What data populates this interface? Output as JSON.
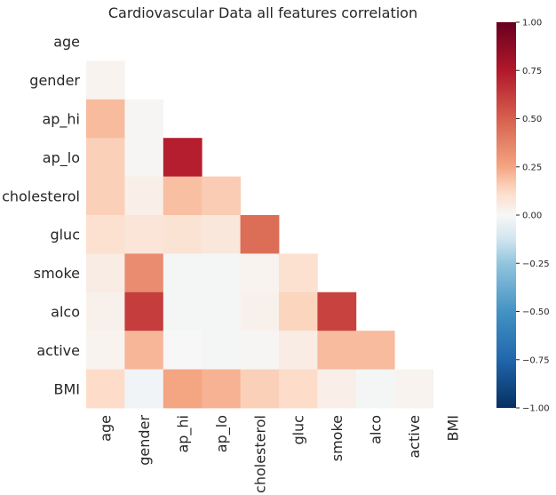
{
  "chart_data": {
    "type": "heatmap",
    "title": "Cardiovascular Data all features correlation",
    "xlabel": "",
    "ylabel": "",
    "mask": "upper-triangle",
    "labels": [
      "age",
      "gender",
      "ap_hi",
      "ap_lo",
      "cholesterol",
      "gluc",
      "smoke",
      "alco",
      "active",
      "BMI"
    ],
    "matrix": [
      [
        null,
        null,
        null,
        null,
        null,
        null,
        null,
        null,
        null,
        null
      ],
      [
        0.02,
        null,
        null,
        null,
        null,
        null,
        null,
        null,
        null,
        null
      ],
      [
        0.2,
        0.01,
        null,
        null,
        null,
        null,
        null,
        null,
        null,
        null
      ],
      [
        0.15,
        0.01,
        0.73,
        null,
        null,
        null,
        null,
        null,
        null,
        null
      ],
      [
        0.15,
        0.04,
        0.19,
        0.16,
        null,
        null,
        null,
        null,
        null,
        null
      ],
      [
        0.1,
        0.08,
        0.09,
        0.07,
        0.45,
        null,
        null,
        null,
        null,
        null
      ],
      [
        0.05,
        0.34,
        -0.01,
        -0.01,
        0.02,
        0.1,
        null,
        null,
        null,
        null
      ],
      [
        0.03,
        0.62,
        -0.01,
        -0.01,
        0.03,
        0.14,
        0.6,
        null,
        null,
        null
      ],
      [
        0.02,
        0.21,
        0.0,
        -0.01,
        0.01,
        0.05,
        0.2,
        0.2,
        null,
        null
      ],
      [
        0.12,
        -0.02,
        0.25,
        0.22,
        0.15,
        0.12,
        0.04,
        -0.01,
        0.02,
        null
      ]
    ],
    "colorbar": {
      "colormap": "RdBu_r",
      "range": [
        -1.0,
        1.0
      ],
      "ticks": [
        "1.00",
        "0.75",
        "0.50",
        "0.25",
        "0.00",
        "−0.25",
        "−0.50",
        "−0.75",
        "−1.00"
      ]
    }
  }
}
